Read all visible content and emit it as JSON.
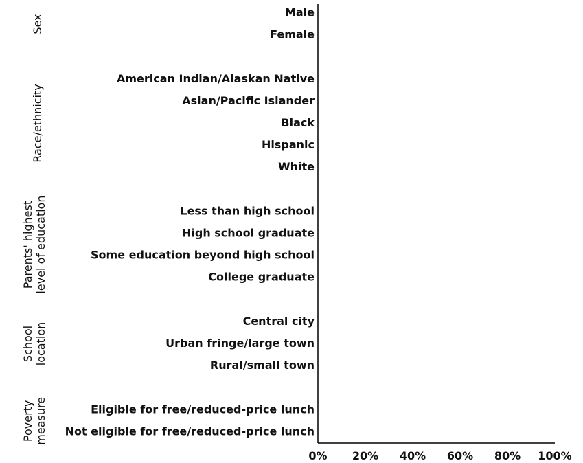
{
  "chart_data": {
    "type": "bar",
    "orientation": "horizontal",
    "title": "",
    "xlabel": "",
    "ylabel": "",
    "xlim": [
      0,
      100
    ],
    "x_ticks": [
      "0%",
      "20%",
      "40%",
      "60%",
      "80%",
      "100%"
    ],
    "grid": false,
    "groups": [
      {
        "label": "Sex",
        "categories": [
          {
            "label": "Male",
            "value": null
          },
          {
            "label": "Female",
            "value": null
          }
        ]
      },
      {
        "label": "Race/ethnicity",
        "categories": [
          {
            "label": "American Indian/Alaskan Native",
            "value": null
          },
          {
            "label": "Asian/Pacific Islander",
            "value": null
          },
          {
            "label": "Black",
            "value": null
          },
          {
            "label": "Hispanic",
            "value": null
          },
          {
            "label": "White",
            "value": null
          }
        ]
      },
      {
        "label": "Parents' highest level of education",
        "label_lines": [
          "Parents' highest",
          "level of education"
        ],
        "categories": [
          {
            "label": "Less than high school",
            "value": null
          },
          {
            "label": "High school graduate",
            "value": null
          },
          {
            "label": "Some education beyond high school",
            "value": null
          },
          {
            "label": "College graduate",
            "value": null
          }
        ]
      },
      {
        "label": "School location",
        "label_lines": [
          "School",
          "location"
        ],
        "categories": [
          {
            "label": "Central city",
            "value": null
          },
          {
            "label": "Urban fringe/large town",
            "value": null
          },
          {
            "label": "Rural/small town",
            "value": null
          }
        ]
      },
      {
        "label": "Poverty measure",
        "label_lines": [
          "Poverty",
          "measure"
        ],
        "categories": [
          {
            "label": "Eligible for free/reduced-price lunch",
            "value": null
          },
          {
            "label": "Not eligible for free/reduced-price lunch",
            "value": null
          }
        ]
      }
    ]
  }
}
